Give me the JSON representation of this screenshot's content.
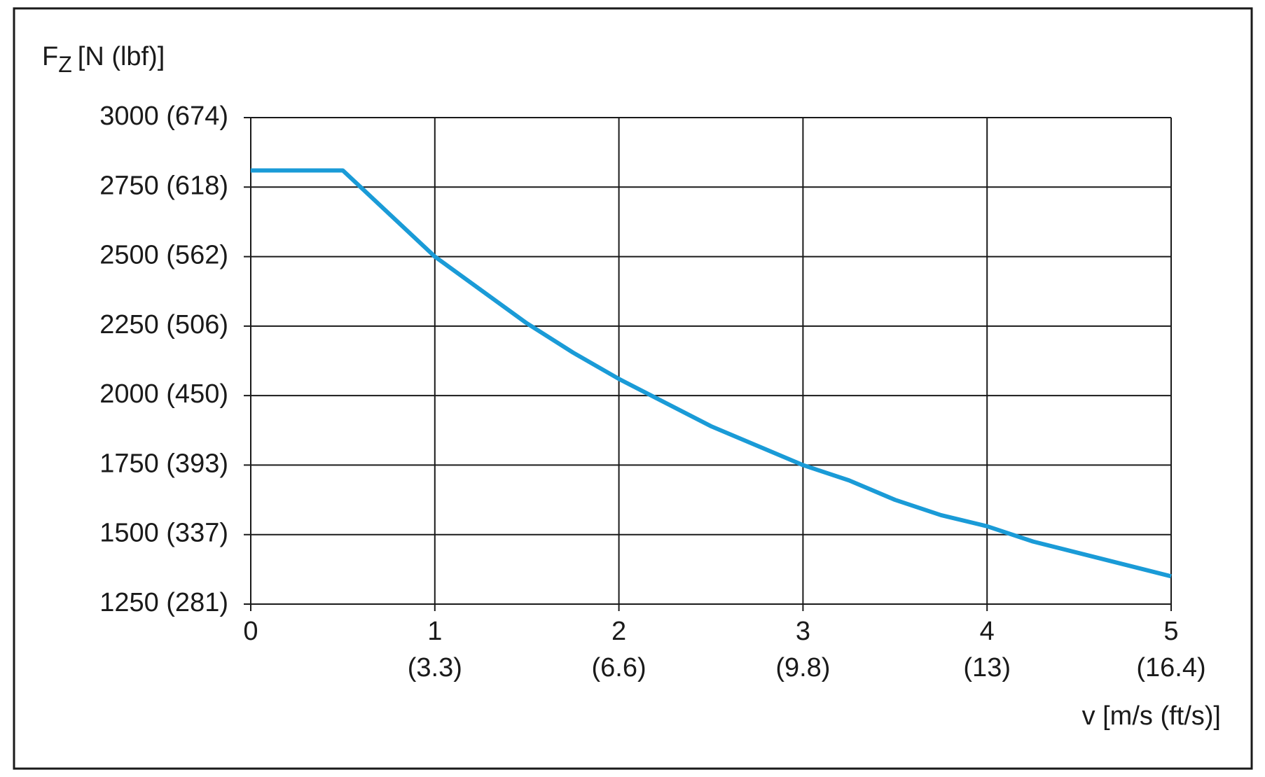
{
  "chart_data": {
    "type": "line",
    "ylabel": "F",
    "ylabel_sub": "Z",
    "ylabel_unit": "[N (lbf)]",
    "xlabel": "v [m/s (ft/s)]",
    "x": [
      0,
      0.5,
      1,
      1.5,
      1.75,
      2,
      2.5,
      3,
      3.25,
      3.5,
      3.75,
      4,
      4.25,
      5
    ],
    "series": [
      {
        "color": "#1a9bd7",
        "values": [
          2810,
          2810,
          2500,
          2260,
          2155,
          2060,
          1890,
          1750,
          1695,
          1625,
          1570,
          1530,
          1475,
          1350
        ]
      }
    ],
    "xlim": [
      0,
      5
    ],
    "xticks": [
      0,
      {
        "value": 1,
        "label": "1",
        "label2": "(3.3)"
      },
      {
        "value": 2,
        "label": "2",
        "label2": "(6.6)"
      },
      {
        "value": 3,
        "label": "3",
        "label2": "(9.8)"
      },
      {
        "value": 4,
        "label": "4",
        "label2": "(13)"
      },
      {
        "value": 5,
        "label": "5",
        "label2": "(16.4)"
      }
    ],
    "ylim": [
      1250,
      3000
    ],
    "yticks": [
      {
        "value": 1250,
        "label": "1250 (281)"
      },
      {
        "value": 1500,
        "label": "1500 (337)"
      },
      {
        "value": 1750,
        "label": "1750 (393)"
      },
      {
        "value": 2000,
        "label": "2000 (450)"
      },
      {
        "value": 2250,
        "label": "2250 (506)"
      },
      {
        "value": 2500,
        "label": "2500 (562)"
      },
      {
        "value": 2750,
        "label": "2750 (618)"
      },
      {
        "value": 3000,
        "label": "3000 (674)"
      }
    ],
    "grid": true
  }
}
